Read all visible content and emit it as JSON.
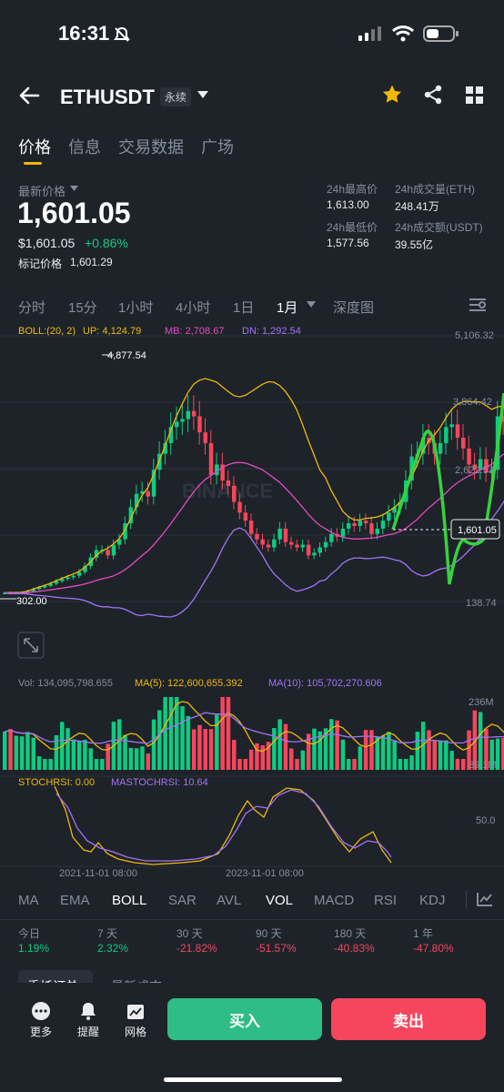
{
  "status_bar": {
    "time": "16:31"
  },
  "header": {
    "symbol": "ETHUSDT",
    "badge": "永续"
  },
  "tabs": [
    {
      "label": "价格"
    },
    {
      "label": "信息"
    },
    {
      "label": "交易数据"
    },
    {
      "label": "广场"
    }
  ],
  "price": {
    "label": "最新价格",
    "last": "1,601.05",
    "usd": "$1,601.05",
    "change": "+0.86%",
    "mark_label": "标记价格",
    "mark": "1,601.29"
  },
  "stats": {
    "high_label": "24h最高价",
    "high": "1,613.00",
    "low_label": "24h最低价",
    "low": "1,577.56",
    "vol_eth_label": "24h成交量(ETH)",
    "vol_eth": "248.41万",
    "vol_usdt_label": "24h成交额(USDT)",
    "vol_usdt": "39.55亿"
  },
  "timeframes": [
    {
      "label": "分时"
    },
    {
      "label": "15分"
    },
    {
      "label": "1小时"
    },
    {
      "label": "4小时"
    },
    {
      "label": "1日"
    },
    {
      "label": "1月"
    },
    {
      "label": "深度图"
    }
  ],
  "boll": {
    "label": "BOLL:(20, 2)",
    "up": "UP: 4,124.79",
    "mb": "MB: 2,708.67",
    "dn": "DN: 1,292.54"
  },
  "price_axis": [
    "5,106.32",
    "3,864.42",
    "2,622.53",
    "1,601.05",
    "138.74"
  ],
  "chart_labels": {
    "high": "4,877.54",
    "low": "302.00",
    "watermark": "BINANCE"
  },
  "volume": {
    "vol": "Vol: 134,095,798.655",
    "ma5": "MA(5): 122,600,655.392",
    "ma10": "MA(10): 105,702,270.606",
    "axis_top": "236M",
    "axis_bottom": "39.1M"
  },
  "stoch": {
    "stochrsi": "STOCHRSI: 0.00",
    "mastochrsi": "MASTOCHRSI: 10.64",
    "axis": "50.0"
  },
  "dates": [
    "2021-11-01 08:00",
    "2023-11-01 08:00"
  ],
  "indicators": [
    {
      "label": "MA"
    },
    {
      "label": "EMA"
    },
    {
      "label": "BOLL"
    },
    {
      "label": "SAR"
    },
    {
      "label": "AVL"
    },
    {
      "label": "VOL"
    },
    {
      "label": "MACD"
    },
    {
      "label": "RSI"
    },
    {
      "label": "KDJ"
    }
  ],
  "performance": [
    {
      "period": "今日",
      "value": "1.19%"
    },
    {
      "period": "7 天",
      "value": "2.32%"
    },
    {
      "period": "30 天",
      "value": "-21.82%"
    },
    {
      "period": "90 天",
      "value": "-51.57%"
    },
    {
      "period": "180 天",
      "value": "-40.83%"
    },
    {
      "period": "1 年",
      "value": "-47.80%"
    }
  ],
  "partial_tabs": [
    {
      "label": "委托订单"
    },
    {
      "label": "最新成交"
    }
  ],
  "bottom": {
    "more": "更多",
    "alert": "提醒",
    "grid": "网格",
    "buy": "买入",
    "sell": "卖出"
  },
  "colors": {
    "up": "#0ecb81",
    "down": "#f6465d",
    "accent": "#f0b90b",
    "bg": "#1e2329"
  }
}
